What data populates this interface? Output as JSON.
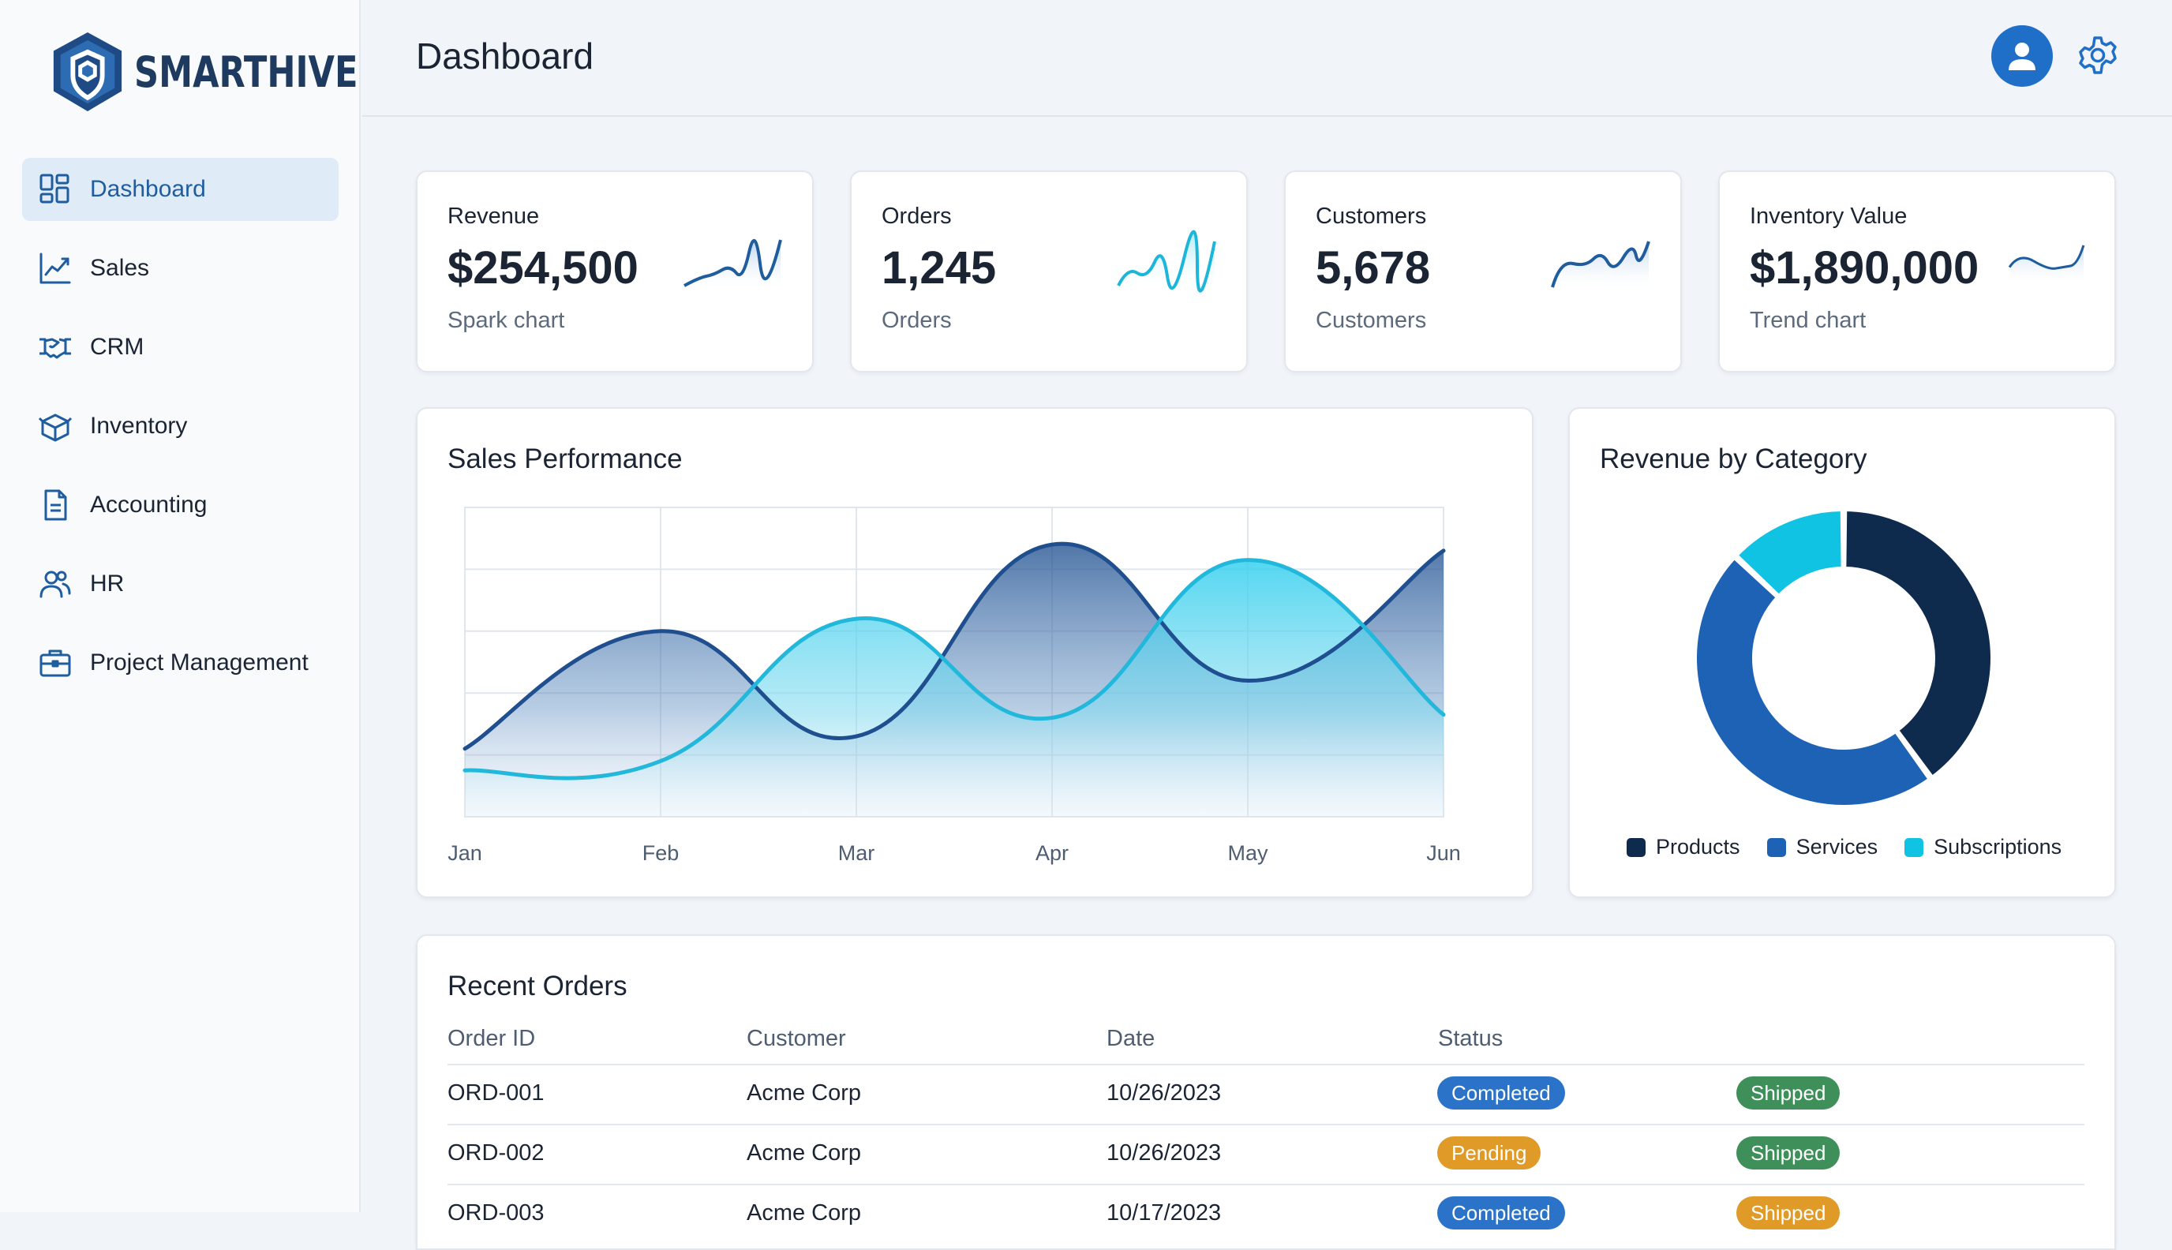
{
  "brand": {
    "name": "SMARTHIVE"
  },
  "nav": [
    {
      "label": "Dashboard",
      "icon": "dashboard-icon",
      "active": true
    },
    {
      "label": "Sales",
      "icon": "trend-chart-icon"
    },
    {
      "label": "CRM",
      "icon": "handshake-icon"
    },
    {
      "label": "Inventory",
      "icon": "box-icon"
    },
    {
      "label": "Accounting",
      "icon": "document-icon"
    },
    {
      "label": "HR",
      "icon": "users-icon"
    },
    {
      "label": "Project Management",
      "icon": "briefcase-icon"
    }
  ],
  "header": {
    "title": "Dashboard"
  },
  "stats": [
    {
      "label": "Revenue",
      "value": "$254,500",
      "sub": "Spark chart"
    },
    {
      "label": "Orders",
      "value": "1,245",
      "sub": "Orders"
    },
    {
      "label": "Customers",
      "value": "5,678",
      "sub": "Customers"
    },
    {
      "label": "Inventory Value",
      "value": "$1,890,000",
      "sub": "Trend chart"
    }
  ],
  "sales_performance": {
    "title": "Sales Performance"
  },
  "revenue_by_category": {
    "title": "Revenue by Category"
  },
  "chart_data": [
    {
      "type": "area",
      "title": "Sales Performance",
      "categories": [
        "Jan",
        "Feb",
        "Mar",
        "Apr",
        "May",
        "Jun"
      ],
      "series": [
        {
          "values": [
            22,
            60,
            26,
            88,
            44,
            86
          ]
        },
        {
          "values": [
            15,
            18,
            64,
            32,
            83,
            33
          ]
        }
      ],
      "ylim": [
        0,
        100
      ],
      "grid": true,
      "colors": [
        "#1f4f8f",
        "#22b8dc"
      ]
    },
    {
      "type": "pie",
      "title": "Revenue by Category",
      "donut": true,
      "labels": [
        "Products",
        "Services",
        "Subscriptions"
      ],
      "values": [
        40,
        47,
        13
      ],
      "colors": [
        "#0e2a4d",
        "#1e62b5",
        "#10c3e3"
      ],
      "legend": "bottom"
    }
  ],
  "recent_orders": {
    "title": "Recent Orders",
    "columns": [
      "Order ID",
      "Customer",
      "Date",
      "Status"
    ],
    "rows": [
      {
        "id": "ORD-001",
        "customer": "Acme Corp",
        "date": "10/26/2023",
        "status": "Completed",
        "shipping": "Shipped"
      },
      {
        "id": "ORD-002",
        "customer": "Acme Corp",
        "date": "10/26/2023",
        "status": "Pending",
        "shipping": "Shipped"
      },
      {
        "id": "ORD-003",
        "customer": "Acme Corp",
        "date": "10/17/2023",
        "status": "Completed",
        "shipping": "Shipped"
      }
    ]
  },
  "colors": {
    "accent": "#1f6fc9",
    "completed": "#2a73c8",
    "pending": "#df9a27",
    "shipped": "#3f8f5a",
    "shipped_alt": "#df9a27"
  }
}
